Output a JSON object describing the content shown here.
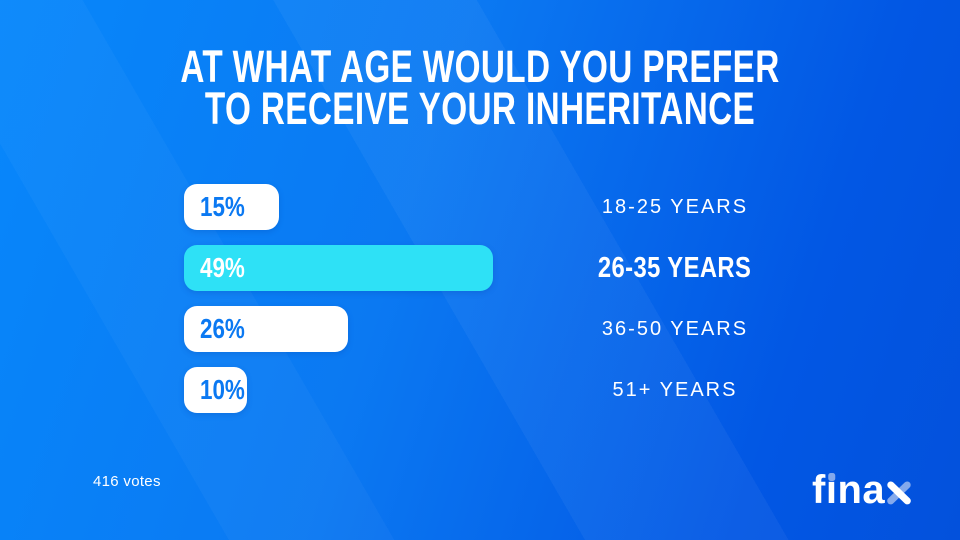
{
  "title": {
    "line1": "AT WHAT AGE WOULD YOU PREFER",
    "line2": "TO RECEIVE YOUR INHERITANCE"
  },
  "rows": [
    {
      "pct": "15%",
      "value": 15,
      "label": "18-25 YEARS",
      "highlight": false
    },
    {
      "pct": "49%",
      "value": 49,
      "label": "26-35 YEARS",
      "highlight": true
    },
    {
      "pct": "26%",
      "value": 26,
      "label": "36-50 YEARS",
      "highlight": false
    },
    {
      "pct": "10%",
      "value": 10,
      "label": "51+ YEARS",
      "highlight": false
    }
  ],
  "footer": {
    "votes": "416 votes"
  },
  "logo": {
    "text": "finax",
    "parts": {
      "p1": "f",
      "p2": "ı",
      "p3": "na"
    }
  },
  "colors": {
    "bg_start": "#0787FB",
    "bg_end": "#0351DC",
    "bar_default": "#FFFFFF",
    "bar_highlight": "#2EE1F6",
    "pct_text": "#0B79F2",
    "text": "#FFFFFF",
    "logo_accent": "#84A9EC"
  },
  "chart_data": {
    "type": "bar",
    "orientation": "horizontal",
    "title": "AT WHAT AGE WOULD YOU PREFER TO RECEIVE YOUR INHERITANCE",
    "categories": [
      "18-25 YEARS",
      "26-35 YEARS",
      "36-50 YEARS",
      "51+ YEARS"
    ],
    "values": [
      15,
      49,
      26,
      10
    ],
    "unit": "%",
    "data_labels": [
      "15%",
      "49%",
      "26%",
      "10%"
    ],
    "highlighted_category": "26-35 YEARS",
    "annotation": "416 votes",
    "xlim": [
      0,
      100
    ],
    "grid": false,
    "legend": false
  }
}
